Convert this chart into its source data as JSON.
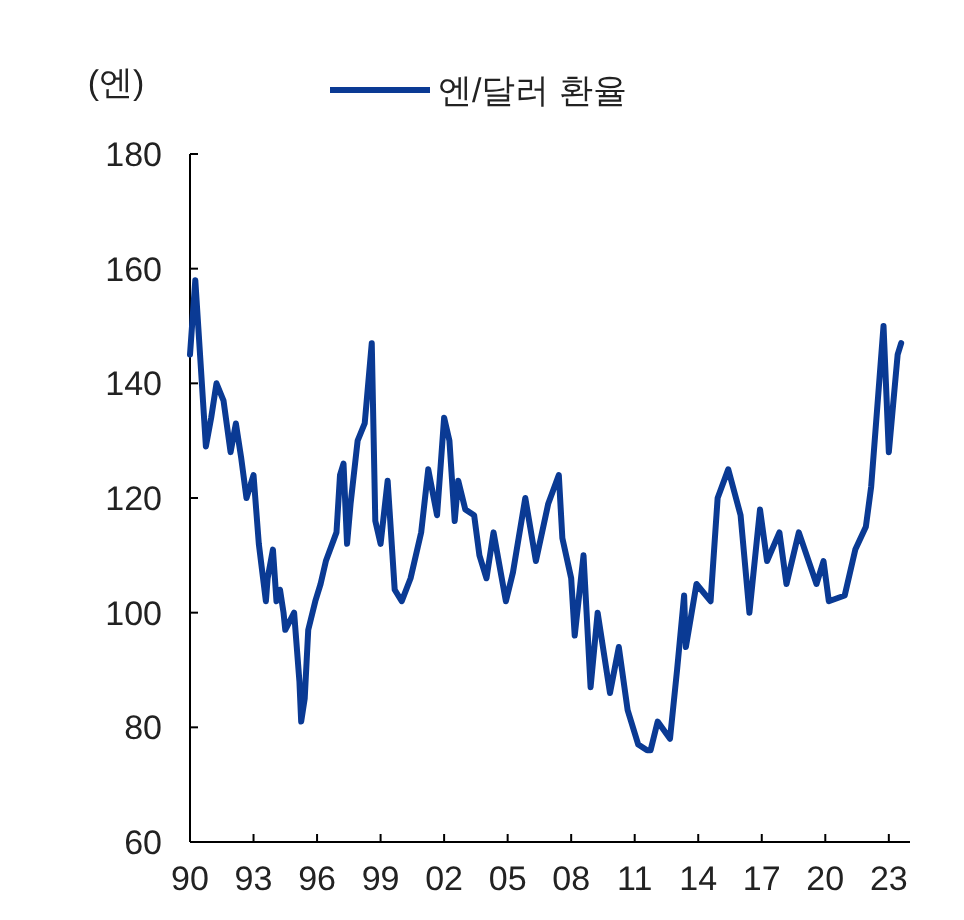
{
  "chart_data": {
    "type": "line",
    "ylabel": "(엔)",
    "legend": "top",
    "line_style": "solid",
    "grid": false,
    "xlim": [
      "1990-01",
      "2024-01"
    ],
    "xticks": [
      {
        "value": "1990-01",
        "label": "90"
      },
      {
        "value": "1993-01",
        "label": "93"
      },
      {
        "value": "1996-01",
        "label": "96"
      },
      {
        "value": "1999-01",
        "label": "99"
      },
      {
        "value": "2002-01",
        "label": "02"
      },
      {
        "value": "2005-01",
        "label": "05"
      },
      {
        "value": "2008-01",
        "label": "08"
      },
      {
        "value": "2011-01",
        "label": "11"
      },
      {
        "value": "2014-01",
        "label": "14"
      },
      {
        "value": "2017-01",
        "label": "17"
      },
      {
        "value": "2020-01",
        "label": "20"
      },
      {
        "value": "2023-01",
        "label": "23"
      }
    ],
    "ylim": [
      60,
      180
    ],
    "yticks": [
      60,
      80,
      100,
      120,
      140,
      160,
      180
    ],
    "x": [
      "1990-01",
      "1990-04",
      "1990-10",
      "1991-01",
      "1991-04",
      "1991-08",
      "1991-12",
      "1992-03",
      "1992-06",
      "1992-09",
      "1993-01",
      "1993-04",
      "1993-08",
      "1993-09",
      "1993-12",
      "1994-02",
      "1994-04",
      "1994-06",
      "1994-07",
      "1994-12",
      "1995-03",
      "1995-04",
      "1995-06",
      "1995-08",
      "1995-12",
      "1996-03",
      "1996-06",
      "1996-12",
      "1997-02",
      "1997-04",
      "1997-06",
      "1997-08",
      "1997-12",
      "1998-04",
      "1998-08",
      "1998-10",
      "1999-01",
      "1999-05",
      "1999-09",
      "2000-01",
      "2000-06",
      "2000-12",
      "2001-04",
      "2001-09",
      "2002-01",
      "2002-04",
      "2002-07",
      "2002-09",
      "2003-01",
      "2003-06",
      "2003-09",
      "2004-01",
      "2004-05",
      "2004-12",
      "2005-04",
      "2005-11",
      "2006-05",
      "2006-12",
      "2007-06",
      "2007-08",
      "2008-01",
      "2008-03",
      "2008-08",
      "2008-12",
      "2009-04",
      "2009-11",
      "2010-04",
      "2010-09",
      "2011-03",
      "2011-08",
      "2011-10",
      "2012-02",
      "2012-09",
      "2013-01",
      "2013-05",
      "2013-06",
      "2013-12",
      "2014-08",
      "2014-12",
      "2015-06",
      "2016-01",
      "2016-06",
      "2016-12",
      "2017-04",
      "2017-11",
      "2018-03",
      "2018-10",
      "2019-08",
      "2019-12",
      "2020-03",
      "2020-12",
      "2021-06",
      "2021-12",
      "2022-03",
      "2022-10",
      "2023-01",
      "2023-06",
      "2023-08"
    ],
    "series": [
      {
        "name": "엔/달러 환율",
        "color": "#0a3a94",
        "values": [
          145,
          158,
          129,
          134,
          140,
          137,
          128,
          133,
          127,
          120,
          124,
          112,
          102,
          106,
          111,
          102,
          104,
          100,
          97,
          100,
          88,
          81,
          85,
          97,
          102,
          105,
          109,
          114,
          124,
          126,
          112,
          119,
          130,
          133,
          147,
          116,
          112,
          123,
          104,
          102,
          106,
          114,
          125,
          117,
          134,
          130,
          116,
          123,
          118,
          117,
          110,
          106,
          114,
          102,
          107,
          120,
          109,
          119,
          124,
          113,
          106,
          96,
          110,
          87,
          100,
          86,
          94,
          83,
          77,
          76,
          76,
          81,
          78,
          90,
          103,
          94,
          105,
          102,
          120,
          125,
          117,
          100,
          118,
          109,
          114,
          105,
          114,
          105,
          109,
          102,
          103,
          111,
          115,
          122,
          150,
          128,
          145,
          147
        ]
      }
    ]
  }
}
